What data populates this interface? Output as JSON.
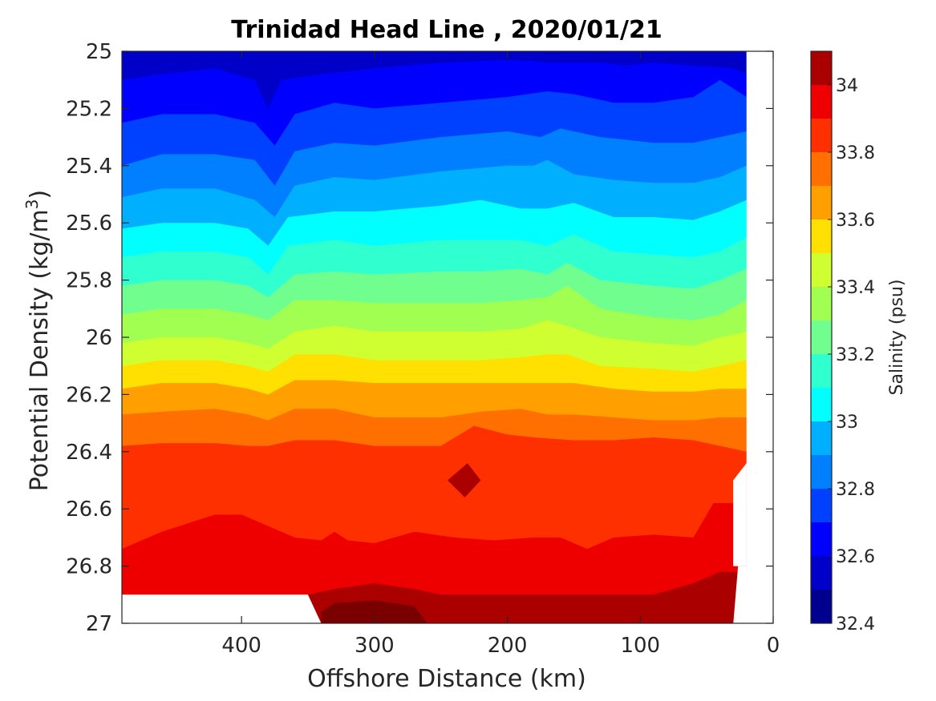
{
  "chart_data": {
    "type": "contour",
    "title": "Trinidad Head Line , 2020/01/21",
    "xlabel": "Offshore Distance (km)",
    "ylabel_main": "Potential Density (kg/m",
    "ylabel_sup": "3",
    "ylabel_close": ")",
    "colorbar_label": "Salinity (psu)",
    "xlim": [
      490,
      0
    ],
    "ylim": [
      27,
      25
    ],
    "x_ticks": [
      400,
      300,
      200,
      100,
      0
    ],
    "x_tick_labels": [
      "400",
      "300",
      "200",
      "100",
      "0"
    ],
    "y_ticks": [
      25,
      25.2,
      25.4,
      25.6,
      25.8,
      26,
      26.2,
      26.4,
      26.6,
      26.8,
      27
    ],
    "y_tick_labels": [
      "25",
      "25.2",
      "25.4",
      "25.6",
      "25.8",
      "26",
      "26.2",
      "26.4",
      "26.6",
      "26.8",
      "27"
    ],
    "colorbar_ticks": [
      32.4,
      32.6,
      32.8,
      33,
      33.2,
      33.4,
      33.6,
      33.8,
      34
    ],
    "colorbar_tick_labels": [
      "32.4",
      "32.6",
      "32.8",
      "33",
      "33.2",
      "33.4",
      "33.6",
      "33.8",
      "34"
    ],
    "levels": [
      32.4,
      32.5,
      32.6,
      32.7,
      32.8,
      32.9,
      33.0,
      33.1,
      33.2,
      33.3,
      33.4,
      33.5,
      33.6,
      33.7,
      33.8,
      33.9,
      34.0,
      34.1
    ],
    "level_colors": [
      "#00008f",
      "#0000c8",
      "#0000ff",
      "#0040ff",
      "#0080ff",
      "#00b0ff",
      "#00ffff",
      "#30ffcf",
      "#70ff8f",
      "#a0ff50",
      "#cfff30",
      "#ffe000",
      "#ffa000",
      "#ff7000",
      "#ff3000",
      "#ee0000",
      "#aa0000"
    ],
    "data_extent_x": [
      490,
      20
    ],
    "contour_boundaries": [
      {
        "level": 32.7,
        "points": [
          [
            490,
            25.1
          ],
          [
            460,
            25.08
          ],
          [
            420,
            25.06
          ],
          [
            390,
            25.1
          ],
          [
            380,
            25.2
          ],
          [
            370,
            25.1
          ],
          [
            340,
            25.08
          ],
          [
            300,
            25.06
          ],
          [
            250,
            25.04
          ],
          [
            200,
            25.03
          ],
          [
            160,
            25.04
          ],
          [
            130,
            25.04
          ],
          [
            110,
            25.05
          ],
          [
            90,
            25.04
          ],
          [
            60,
            25.05
          ],
          [
            30,
            25.06
          ],
          [
            20,
            25.08
          ]
        ]
      },
      {
        "level": 32.8,
        "points": [
          [
            490,
            25.25
          ],
          [
            460,
            25.22
          ],
          [
            420,
            25.22
          ],
          [
            390,
            25.25
          ],
          [
            375,
            25.33
          ],
          [
            360,
            25.22
          ],
          [
            330,
            25.18
          ],
          [
            300,
            25.2
          ],
          [
            250,
            25.18
          ],
          [
            200,
            25.16
          ],
          [
            170,
            25.14
          ],
          [
            150,
            25.15
          ],
          [
            120,
            25.18
          ],
          [
            90,
            25.18
          ],
          [
            60,
            25.16
          ],
          [
            40,
            25.1
          ],
          [
            20,
            25.16
          ]
        ]
      },
      {
        "level": 32.9,
        "points": [
          [
            490,
            25.4
          ],
          [
            460,
            25.36
          ],
          [
            420,
            25.36
          ],
          [
            390,
            25.38
          ],
          [
            375,
            25.47
          ],
          [
            360,
            25.35
          ],
          [
            330,
            25.32
          ],
          [
            300,
            25.33
          ],
          [
            250,
            25.3
          ],
          [
            200,
            25.28
          ],
          [
            175,
            25.3
          ],
          [
            160,
            25.27
          ],
          [
            130,
            25.3
          ],
          [
            90,
            25.32
          ],
          [
            60,
            25.32
          ],
          [
            40,
            25.3
          ],
          [
            20,
            25.28
          ]
        ]
      },
      {
        "level": 33.0,
        "points": [
          [
            490,
            25.51
          ],
          [
            460,
            25.48
          ],
          [
            420,
            25.48
          ],
          [
            390,
            25.52
          ],
          [
            375,
            25.58
          ],
          [
            360,
            25.47
          ],
          [
            330,
            25.44
          ],
          [
            300,
            25.45
          ],
          [
            250,
            25.42
          ],
          [
            200,
            25.4
          ],
          [
            180,
            25.4
          ],
          [
            170,
            25.38
          ],
          [
            150,
            25.43
          ],
          [
            120,
            25.45
          ],
          [
            90,
            25.46
          ],
          [
            60,
            25.46
          ],
          [
            40,
            25.44
          ],
          [
            20,
            25.4
          ]
        ]
      },
      {
        "level": 33.1,
        "points": [
          [
            490,
            25.62
          ],
          [
            460,
            25.6
          ],
          [
            420,
            25.6
          ],
          [
            395,
            25.62
          ],
          [
            380,
            25.68
          ],
          [
            365,
            25.58
          ],
          [
            330,
            25.56
          ],
          [
            300,
            25.56
          ],
          [
            250,
            25.54
          ],
          [
            220,
            25.52
          ],
          [
            190,
            25.55
          ],
          [
            170,
            25.55
          ],
          [
            150,
            25.53
          ],
          [
            120,
            25.58
          ],
          [
            90,
            25.58
          ],
          [
            60,
            25.59
          ],
          [
            40,
            25.56
          ],
          [
            20,
            25.52
          ]
        ]
      },
      {
        "level": 33.2,
        "points": [
          [
            490,
            25.72
          ],
          [
            460,
            25.7
          ],
          [
            420,
            25.7
          ],
          [
            395,
            25.72
          ],
          [
            380,
            25.78
          ],
          [
            365,
            25.68
          ],
          [
            330,
            25.66
          ],
          [
            300,
            25.68
          ],
          [
            250,
            25.66
          ],
          [
            220,
            25.66
          ],
          [
            190,
            25.66
          ],
          [
            170,
            25.68
          ],
          [
            150,
            25.64
          ],
          [
            120,
            25.7
          ],
          [
            90,
            25.71
          ],
          [
            60,
            25.72
          ],
          [
            40,
            25.7
          ],
          [
            20,
            25.65
          ]
        ]
      },
      {
        "level": 33.3,
        "points": [
          [
            490,
            25.82
          ],
          [
            460,
            25.8
          ],
          [
            420,
            25.8
          ],
          [
            395,
            25.82
          ],
          [
            380,
            25.86
          ],
          [
            360,
            25.78
          ],
          [
            330,
            25.77
          ],
          [
            300,
            25.78
          ],
          [
            250,
            25.77
          ],
          [
            220,
            25.77
          ],
          [
            190,
            25.76
          ],
          [
            170,
            25.78
          ],
          [
            155,
            25.74
          ],
          [
            130,
            25.8
          ],
          [
            90,
            25.82
          ],
          [
            60,
            25.83
          ],
          [
            40,
            25.8
          ],
          [
            20,
            25.76
          ]
        ]
      },
      {
        "level": 33.4,
        "points": [
          [
            490,
            25.92
          ],
          [
            460,
            25.9
          ],
          [
            420,
            25.9
          ],
          [
            395,
            25.92
          ],
          [
            380,
            25.94
          ],
          [
            360,
            25.87
          ],
          [
            330,
            25.87
          ],
          [
            300,
            25.88
          ],
          [
            250,
            25.88
          ],
          [
            220,
            25.88
          ],
          [
            190,
            25.87
          ],
          [
            170,
            25.86
          ],
          [
            155,
            25.82
          ],
          [
            130,
            25.9
          ],
          [
            90,
            25.93
          ],
          [
            60,
            25.94
          ],
          [
            40,
            25.92
          ],
          [
            20,
            25.87
          ]
        ]
      },
      {
        "level": 33.5,
        "points": [
          [
            490,
            26.02
          ],
          [
            460,
            26.0
          ],
          [
            420,
            26.0
          ],
          [
            395,
            26.02
          ],
          [
            380,
            26.04
          ],
          [
            360,
            25.98
          ],
          [
            330,
            25.96
          ],
          [
            300,
            25.98
          ],
          [
            250,
            25.98
          ],
          [
            220,
            25.98
          ],
          [
            190,
            25.97
          ],
          [
            170,
            25.94
          ],
          [
            155,
            25.96
          ],
          [
            130,
            26.0
          ],
          [
            90,
            26.02
          ],
          [
            60,
            26.03
          ],
          [
            40,
            26.0
          ],
          [
            20,
            25.98
          ]
        ]
      },
      {
        "level": 33.6,
        "points": [
          [
            490,
            26.1
          ],
          [
            460,
            26.08
          ],
          [
            420,
            26.08
          ],
          [
            395,
            26.1
          ],
          [
            380,
            26.12
          ],
          [
            360,
            26.06
          ],
          [
            330,
            26.06
          ],
          [
            300,
            26.08
          ],
          [
            250,
            26.08
          ],
          [
            220,
            26.08
          ],
          [
            190,
            26.07
          ],
          [
            170,
            26.06
          ],
          [
            155,
            26.06
          ],
          [
            130,
            26.1
          ],
          [
            90,
            26.11
          ],
          [
            60,
            26.12
          ],
          [
            40,
            26.1
          ],
          [
            20,
            26.08
          ]
        ]
      },
      {
        "level": 33.7,
        "points": [
          [
            490,
            26.18
          ],
          [
            460,
            26.16
          ],
          [
            420,
            26.16
          ],
          [
            395,
            26.18
          ],
          [
            380,
            26.2
          ],
          [
            360,
            26.15
          ],
          [
            330,
            26.15
          ],
          [
            300,
            26.16
          ],
          [
            250,
            26.16
          ],
          [
            220,
            26.16
          ],
          [
            190,
            26.16
          ],
          [
            170,
            26.16
          ],
          [
            150,
            26.16
          ],
          [
            120,
            26.18
          ],
          [
            90,
            26.19
          ],
          [
            60,
            26.19
          ],
          [
            40,
            26.18
          ],
          [
            20,
            26.18
          ]
        ]
      },
      {
        "level": 33.8,
        "points": [
          [
            490,
            26.27
          ],
          [
            460,
            26.26
          ],
          [
            420,
            26.25
          ],
          [
            395,
            26.27
          ],
          [
            380,
            26.29
          ],
          [
            360,
            26.25
          ],
          [
            330,
            26.25
          ],
          [
            300,
            26.28
          ],
          [
            250,
            26.28
          ],
          [
            220,
            26.26
          ],
          [
            190,
            26.25
          ],
          [
            170,
            26.27
          ],
          [
            150,
            26.27
          ],
          [
            120,
            26.28
          ],
          [
            90,
            26.29
          ],
          [
            60,
            26.29
          ],
          [
            40,
            26.28
          ],
          [
            20,
            26.28
          ]
        ]
      },
      {
        "level": 33.9,
        "points": [
          [
            490,
            26.38
          ],
          [
            460,
            26.37
          ],
          [
            420,
            26.37
          ],
          [
            395,
            26.38
          ],
          [
            380,
            26.38
          ],
          [
            360,
            26.36
          ],
          [
            330,
            26.36
          ],
          [
            300,
            26.38
          ],
          [
            270,
            26.38
          ],
          [
            250,
            26.38
          ],
          [
            225,
            26.31
          ],
          [
            200,
            26.34
          ],
          [
            180,
            26.35
          ],
          [
            150,
            26.36
          ],
          [
            120,
            26.36
          ],
          [
            90,
            26.35
          ],
          [
            60,
            26.36
          ],
          [
            40,
            26.38
          ],
          [
            20,
            26.4
          ]
        ]
      },
      {
        "level": 34.0,
        "points": [
          [
            490,
            26.74
          ],
          [
            460,
            26.68
          ],
          [
            440,
            26.65
          ],
          [
            420,
            26.62
          ],
          [
            400,
            26.62
          ],
          [
            380,
            26.66
          ],
          [
            360,
            26.7
          ],
          [
            340,
            26.71
          ],
          [
            330,
            26.68
          ],
          [
            320,
            26.71
          ],
          [
            300,
            26.72
          ],
          [
            270,
            26.68
          ],
          [
            240,
            26.7
          ],
          [
            210,
            26.71
          ],
          [
            180,
            26.7
          ],
          [
            160,
            26.7
          ],
          [
            140,
            26.74
          ],
          [
            120,
            26.7
          ],
          [
            90,
            26.69
          ],
          [
            60,
            26.7
          ],
          [
            45,
            26.58
          ],
          [
            30,
            26.58
          ],
          [
            20,
            26.6
          ]
        ]
      },
      {
        "level": 34.1,
        "points": [
          [
            350,
            26.9
          ],
          [
            330,
            26.88
          ],
          [
            300,
            26.86
          ],
          [
            270,
            26.88
          ],
          [
            250,
            26.9
          ],
          [
            90,
            26.9
          ],
          [
            60,
            26.86
          ],
          [
            40,
            26.82
          ],
          [
            25,
            26.82
          ]
        ]
      }
    ],
    "data_bottom": [
      [
        490,
        26.9
      ],
      [
        350,
        26.9
      ],
      [
        340,
        27.0
      ],
      [
        260,
        27.0
      ],
      [
        250,
        26.9
      ],
      [
        30,
        26.9
      ],
      [
        20,
        26.8
      ],
      [
        20,
        26.44
      ],
      [
        40,
        26.5
      ],
      [
        30,
        26.5
      ]
    ]
  }
}
